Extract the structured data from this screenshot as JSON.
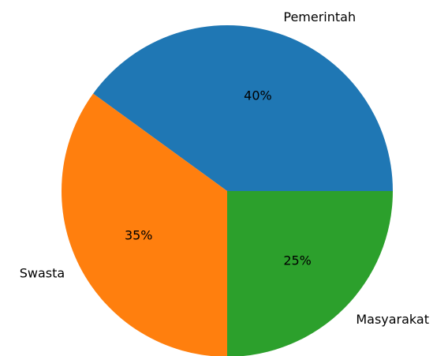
{
  "chart_data": {
    "type": "pie",
    "categories": [
      "Pemerintah",
      "Swasta",
      "Masyarakat"
    ],
    "values": [
      40,
      35,
      25
    ],
    "value_labels": [
      "40%",
      "35%",
      "25%"
    ],
    "colors": [
      "#1f77b4",
      "#ff7f0e",
      "#2ca02c"
    ]
  }
}
